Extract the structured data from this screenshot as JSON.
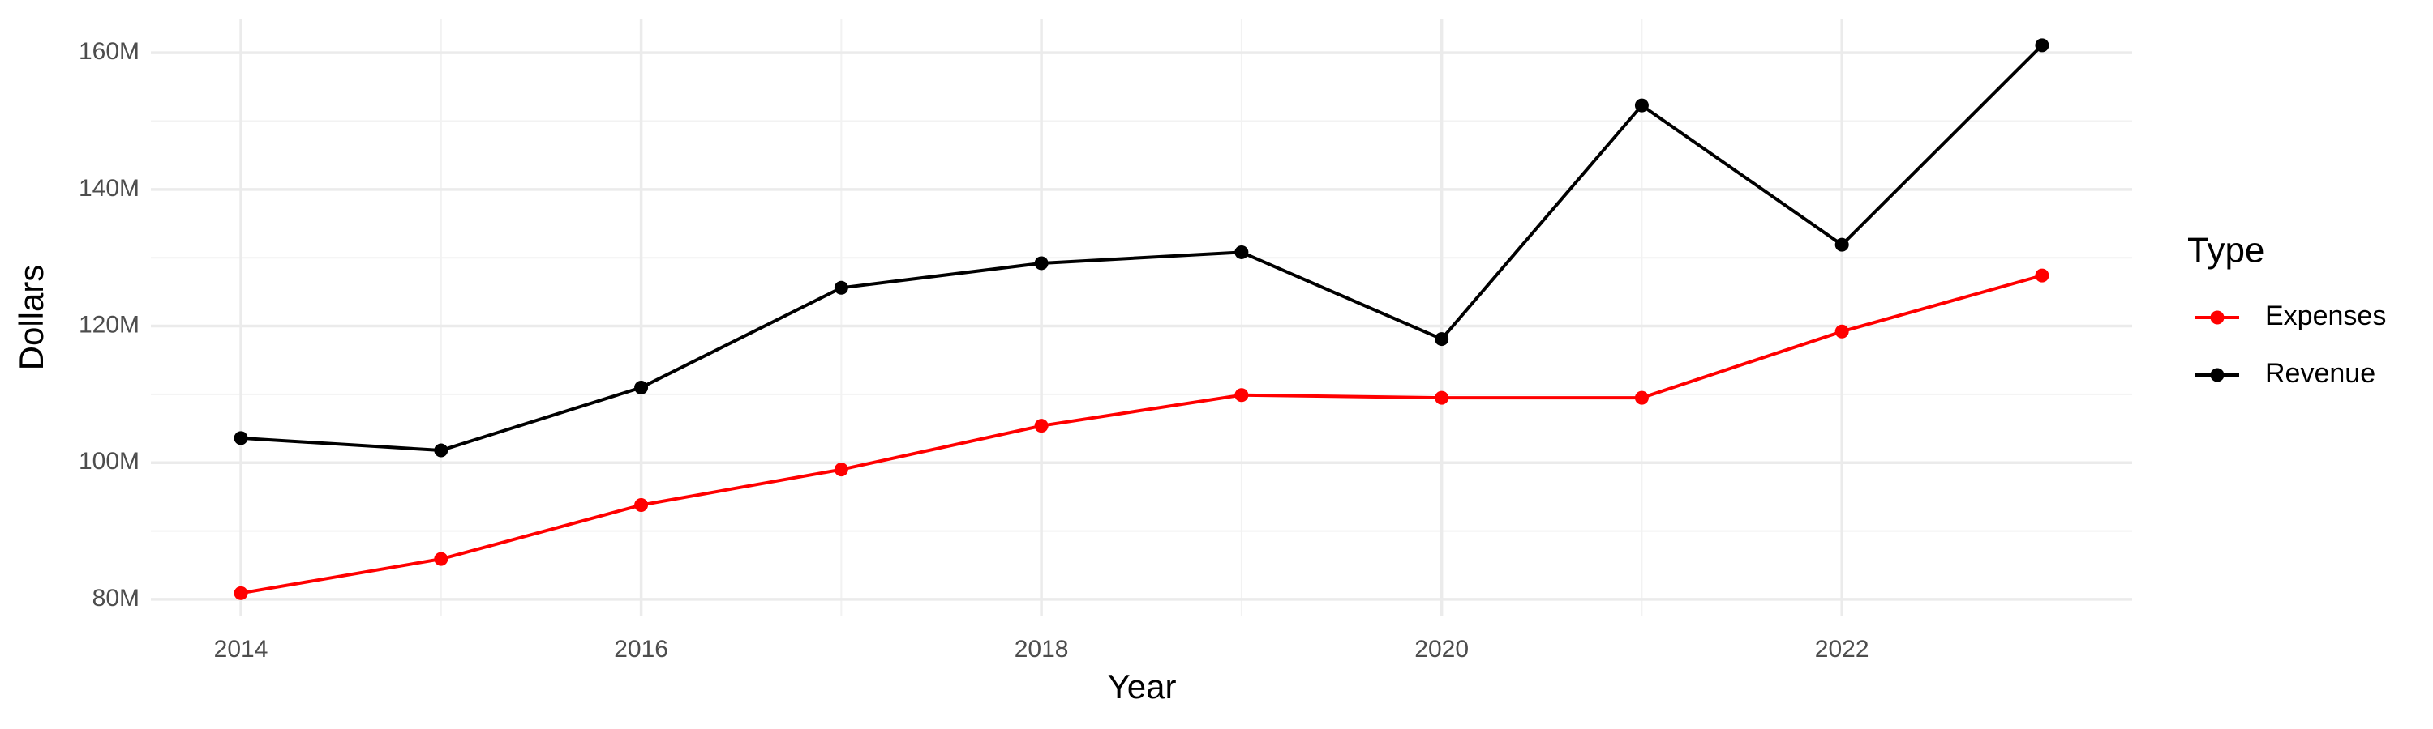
{
  "chart_data": {
    "type": "line",
    "x_label": "Year",
    "y_label": "Dollars",
    "legend_title": "Type",
    "legend_position": "right",
    "grid": true,
    "x": [
      2014,
      2015,
      2016,
      2017,
      2018,
      2019,
      2020,
      2021,
      2022,
      2023
    ],
    "series": [
      {
        "name": "Expenses",
        "color": "#ff0000",
        "values": [
          80900000,
          85900000,
          93800000,
          99000000,
          105400000,
          109900000,
          109500000,
          109500000,
          119200000,
          127400000
        ]
      },
      {
        "name": "Revenue",
        "color": "#000000",
        "values": [
          103600000,
          101800000,
          111000000,
          125600000,
          129200000,
          130800000,
          118100000,
          152300000,
          131900000,
          161100000
        ]
      }
    ],
    "xlim": [
      2013.55,
      2023.45
    ],
    "xticks": [
      2014,
      2016,
      2018,
      2020,
      2022
    ],
    "ylim": [
      77500000,
      165000000
    ],
    "yticks": [
      {
        "value": 80000000,
        "label": "80M"
      },
      {
        "value": 100000000,
        "label": "100M"
      },
      {
        "value": 120000000,
        "label": "120M"
      },
      {
        "value": 140000000,
        "label": "140M"
      },
      {
        "value": 160000000,
        "label": "160M"
      }
    ]
  }
}
